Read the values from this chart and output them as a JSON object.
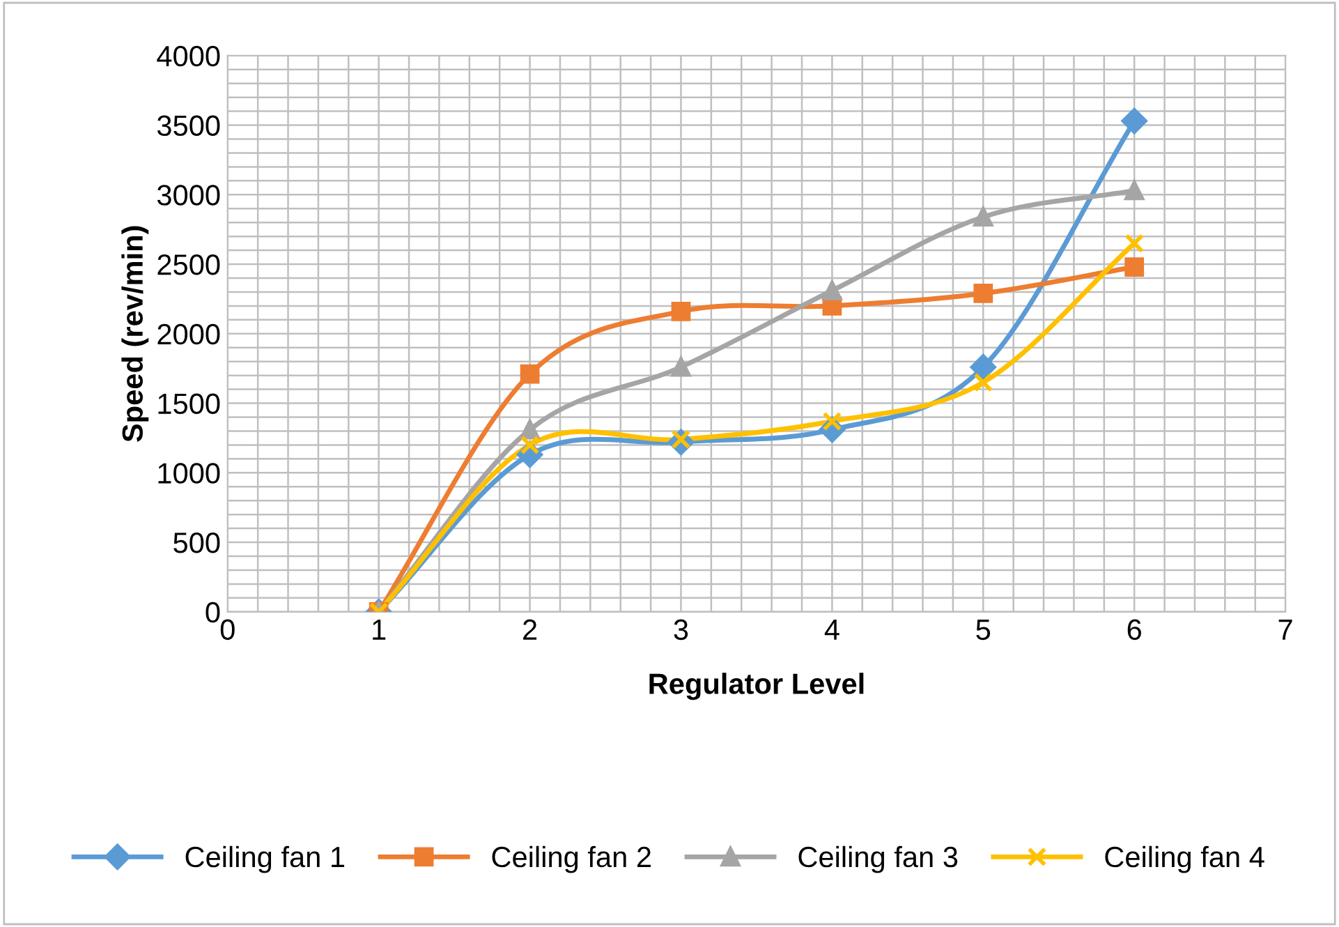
{
  "chart_data": {
    "type": "line",
    "xlabel": "Regulator Level",
    "ylabel": "Speed (rev/min)",
    "x": [
      1,
      2,
      3,
      4,
      5,
      6
    ],
    "series": [
      {
        "name": "Ceiling fan 1",
        "color": "#5b9bd5",
        "marker": "diamond",
        "values": [
          0,
          1130,
          1220,
          1310,
          1760,
          3530
        ]
      },
      {
        "name": "Ceiling fan 2",
        "color": "#ed7d31",
        "marker": "square",
        "values": [
          0,
          1710,
          2160,
          2200,
          2290,
          2480
        ]
      },
      {
        "name": "Ceiling fan 3",
        "color": "#a5a5a5",
        "marker": "triangle",
        "values": [
          0,
          1310,
          1760,
          2310,
          2840,
          3030
        ]
      },
      {
        "name": "Ceiling fan 4",
        "color": "#ffc000",
        "marker": "cross",
        "values": [
          0,
          1200,
          1240,
          1370,
          1650,
          2650
        ]
      }
    ],
    "xlim": [
      0,
      7
    ],
    "xticks": [
      0,
      1,
      2,
      3,
      4,
      5,
      6,
      7
    ],
    "ylim": [
      0,
      4000
    ],
    "yticks": [
      0,
      500,
      1000,
      1500,
      2000,
      2500,
      3000,
      3500,
      4000
    ],
    "grid": true,
    "legend": "bottom",
    "line_style": "solid"
  }
}
